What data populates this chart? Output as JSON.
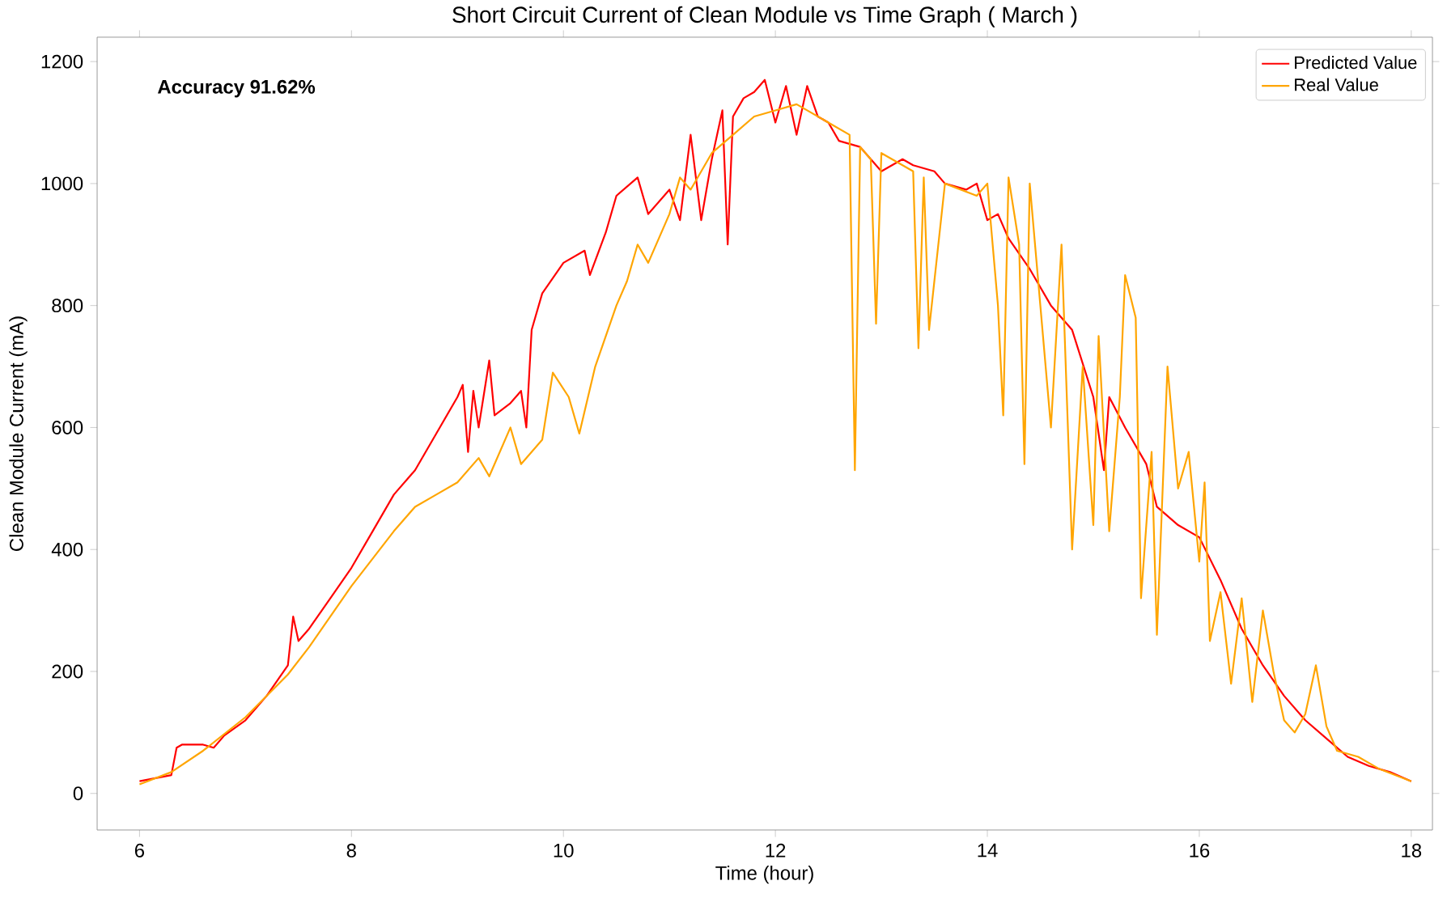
{
  "chart_data": {
    "type": "line",
    "title": "Short Circuit Current of Clean Module vs Time Graph ( March )",
    "xlabel": "Time (hour)",
    "ylabel": "Clean Module Current (mA)",
    "annotations": [
      "**Accuracy 91.62%**"
    ],
    "xlim": [
      5.6,
      18.2
    ],
    "ylim": [
      -60,
      1240
    ],
    "xticks": [
      6,
      8,
      10,
      12,
      14,
      16,
      18
    ],
    "yticks": [
      0,
      200,
      400,
      600,
      800,
      1000,
      1200
    ],
    "grid": false,
    "legend": "top right",
    "marker": "none",
    "line_style": "solid",
    "series": [
      {
        "name": "Predicted Value",
        "color": "#ff0000",
        "x": [
          6.0,
          6.3,
          6.35,
          6.4,
          6.6,
          6.7,
          6.8,
          7.0,
          7.2,
          7.4,
          7.45,
          7.5,
          7.6,
          7.8,
          8.0,
          8.2,
          8.4,
          8.6,
          8.8,
          9.0,
          9.05,
          9.1,
          9.15,
          9.2,
          9.3,
          9.35,
          9.5,
          9.6,
          9.65,
          9.7,
          9.8,
          10.0,
          10.2,
          10.25,
          10.4,
          10.5,
          10.7,
          10.8,
          11.0,
          11.1,
          11.2,
          11.3,
          11.4,
          11.5,
          11.55,
          11.6,
          11.7,
          11.8,
          11.9,
          12.0,
          12.1,
          12.2,
          12.3,
          12.4,
          12.5,
          12.6,
          12.8,
          13.0,
          13.2,
          13.3,
          13.5,
          13.6,
          13.8,
          13.9,
          14.0,
          14.1,
          14.2,
          14.4,
          14.6,
          14.8,
          15.0,
          15.1,
          15.15,
          15.3,
          15.5,
          15.6,
          15.8,
          16.0,
          16.2,
          16.4,
          16.6,
          16.8,
          17.0,
          17.2,
          17.4,
          17.6,
          17.8,
          18.0
        ],
        "values": [
          20,
          30,
          75,
          80,
          80,
          75,
          95,
          120,
          160,
          210,
          290,
          250,
          270,
          320,
          370,
          430,
          490,
          530,
          590,
          650,
          670,
          560,
          660,
          600,
          710,
          620,
          640,
          660,
          600,
          760,
          820,
          870,
          890,
          850,
          920,
          980,
          1010,
          950,
          990,
          940,
          1080,
          940,
          1040,
          1120,
          900,
          1110,
          1140,
          1150,
          1170,
          1100,
          1160,
          1080,
          1160,
          1110,
          1100,
          1070,
          1060,
          1020,
          1040,
          1030,
          1020,
          1000,
          990,
          1000,
          940,
          950,
          910,
          860,
          800,
          760,
          650,
          530,
          650,
          600,
          540,
          470,
          440,
          420,
          350,
          270,
          210,
          160,
          120,
          90,
          60,
          45,
          35,
          20
        ]
      },
      {
        "name": "Real Value",
        "color": "#ffa500",
        "x": [
          6.0,
          6.3,
          6.6,
          7.0,
          7.4,
          7.6,
          8.0,
          8.4,
          8.6,
          8.8,
          9.0,
          9.2,
          9.3,
          9.5,
          9.6,
          9.8,
          9.9,
          10.05,
          10.15,
          10.3,
          10.5,
          10.6,
          10.7,
          10.8,
          11.0,
          11.1,
          11.2,
          11.4,
          11.6,
          11.8,
          12.0,
          12.2,
          12.5,
          12.7,
          12.75,
          12.8,
          12.9,
          12.95,
          13.0,
          13.3,
          13.35,
          13.4,
          13.45,
          13.6,
          13.9,
          14.0,
          14.1,
          14.15,
          14.2,
          14.3,
          14.35,
          14.4,
          14.5,
          14.6,
          14.7,
          14.8,
          14.9,
          15.0,
          15.05,
          15.15,
          15.25,
          15.3,
          15.4,
          15.45,
          15.55,
          15.6,
          15.7,
          15.8,
          15.9,
          16.0,
          16.05,
          16.1,
          16.2,
          16.3,
          16.4,
          16.5,
          16.6,
          16.7,
          16.8,
          16.9,
          17.0,
          17.1,
          17.2,
          17.3,
          17.5,
          17.7,
          18.0
        ],
        "values": [
          15,
          35,
          70,
          125,
          195,
          240,
          340,
          430,
          470,
          490,
          510,
          550,
          520,
          600,
          540,
          580,
          690,
          650,
          590,
          700,
          800,
          840,
          900,
          870,
          950,
          1010,
          990,
          1050,
          1080,
          1110,
          1120,
          1130,
          1100,
          1080,
          530,
          1060,
          1040,
          770,
          1050,
          1020,
          730,
          1010,
          760,
          1000,
          980,
          1000,
          800,
          620,
          1010,
          900,
          540,
          1000,
          800,
          600,
          900,
          400,
          700,
          440,
          750,
          430,
          650,
          850,
          780,
          320,
          560,
          260,
          700,
          500,
          560,
          380,
          510,
          250,
          330,
          180,
          320,
          150,
          300,
          200,
          120,
          100,
          130,
          210,
          110,
          70,
          60,
          40,
          20
        ]
      }
    ]
  }
}
